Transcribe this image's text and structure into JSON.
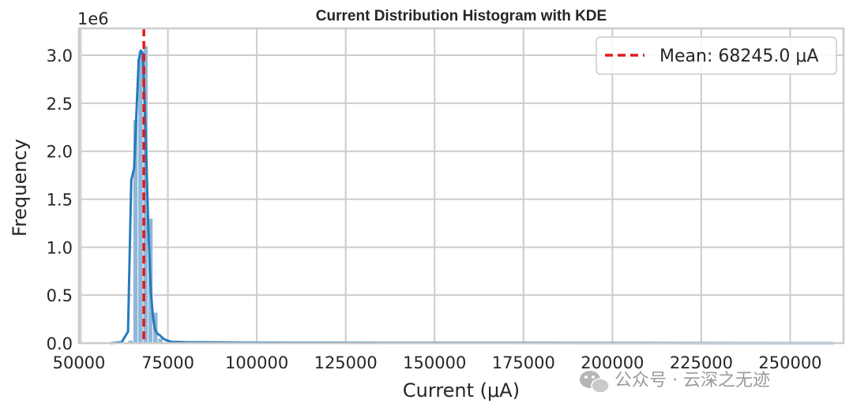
{
  "chart_data": {
    "type": "histogram",
    "title": "Current Distribution Histogram with KDE",
    "xlabel": "Current (μA)",
    "ylabel": "Frequency",
    "y_offset_label": "1e6",
    "xlim": [
      50000,
      265000
    ],
    "ylim": [
      0,
      3.28
    ],
    "x_ticks": [
      50000,
      75000,
      100000,
      125000,
      150000,
      175000,
      200000,
      225000,
      250000
    ],
    "x_tick_labels": [
      "50000",
      "75000",
      "100000",
      "125000",
      "150000",
      "175000",
      "200000",
      "225000",
      "250000"
    ],
    "y_ticks": [
      0.0,
      0.5,
      1.0,
      1.5,
      2.0,
      2.5,
      3.0
    ],
    "y_tick_labels": [
      "0.0",
      "0.5",
      "1.0",
      "1.5",
      "2.0",
      "2.5",
      "3.0"
    ],
    "y_unit_multiplier": 1000000,
    "grid": true,
    "legend_position": "top-right",
    "mean_value": 68245.0,
    "mean_label": "Mean: 68245.0 μA",
    "hist_bins": [
      {
        "x0": 63800,
        "x1": 65200,
        "value": 0.03
      },
      {
        "x0": 65200,
        "x1": 66600,
        "value": 2.33
      },
      {
        "x0": 66600,
        "x1": 68000,
        "value": 3.04
      },
      {
        "x0": 68000,
        "x1": 69400,
        "value": 3.1
      },
      {
        "x0": 69400,
        "x1": 70800,
        "value": 1.3
      },
      {
        "x0": 70800,
        "x1": 72200,
        "value": 0.32
      },
      {
        "x0": 72200,
        "x1": 73600,
        "value": 0.05
      }
    ],
    "kde": {
      "x": [
        59000,
        62000,
        63800,
        64700,
        65500,
        66100,
        66800,
        67400,
        67900,
        68400,
        68900,
        69500,
        70200,
        70800,
        71400,
        72000,
        72800,
        73600,
        74600,
        76000,
        80000,
        100000,
        150000,
        200000,
        262000
      ],
      "y": [
        0.0,
        0.01,
        0.12,
        1.7,
        1.82,
        2.35,
        2.95,
        3.05,
        3.02,
        2.6,
        2.0,
        1.2,
        0.55,
        0.28,
        0.14,
        0.1,
        0.08,
        0.05,
        0.03,
        0.015,
        0.01,
        0.005,
        0.003,
        0.002,
        0.0
      ]
    },
    "colors": {
      "bar": "#8fb7d9",
      "bar_edge": "#ffffff",
      "kde": "#2a7ab9",
      "mean_line": "#e31a1c",
      "grid": "#cccccc",
      "frame": "#cccccc"
    }
  },
  "watermark": {
    "icon": "wechat-icon",
    "text": "公众号 · 云深之无迹"
  }
}
